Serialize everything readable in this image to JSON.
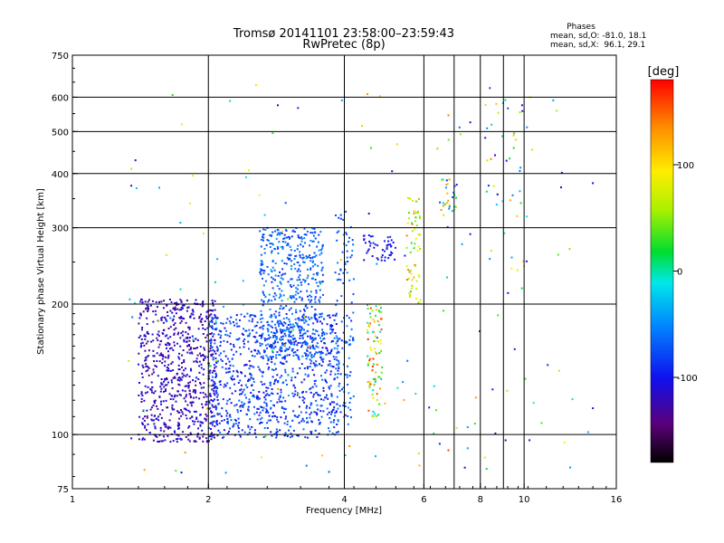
{
  "chart_data": {
    "type": "scatter",
    "title": "Tromsø 20141101 23:58:00–23:59:43",
    "subtitle": "RwPretec (8p)",
    "xlabel": "Frequency [MHz]",
    "ylabel": "Stationary phase Virtual Height [km]",
    "x_scale": "log",
    "y_scale": "log",
    "xlim": [
      1,
      16
    ],
    "ylim": [
      75,
      750
    ],
    "x_ticks": [
      "1",
      "2",
      "4",
      "6",
      "8",
      "10",
      "16"
    ],
    "x_tick_values": [
      1,
      2,
      4,
      6,
      8,
      10,
      16
    ],
    "y_ticks": [
      "75",
      "100",
      "200",
      "300",
      "400",
      "500",
      "600",
      "750"
    ],
    "y_tick_values": [
      75,
      100,
      200,
      300,
      400,
      500,
      600,
      750
    ],
    "grid": true,
    "phases_box": {
      "heading": "Phases",
      "line1": "mean, sd,O: -81.0, 18.1",
      "line2": "mean, sd,X:  96.1, 29.1"
    },
    "colorbar": {
      "unit_label": "[deg]",
      "range": [
        -180,
        180
      ],
      "tick_labels": [
        "100",
        "0",
        "-100"
      ],
      "tick_values": [
        100,
        0,
        -100
      ]
    },
    "clusters": [
      {
        "f": [
          1.4,
          2.1
        ],
        "h": [
          96,
          205
        ],
        "phase": [
          -140,
          -100
        ],
        "count": 720
      },
      {
        "f": [
          2.0,
          3.9
        ],
        "h": [
          98,
          190
        ],
        "phase": [
          -110,
          -55
        ],
        "count": 900
      },
      {
        "f": [
          2.6,
          3.6
        ],
        "h": [
          150,
          300
        ],
        "phase": [
          -90,
          -45
        ],
        "count": 480
      },
      {
        "f": [
          3.8,
          4.2
        ],
        "h": [
          105,
          330
        ],
        "phase": [
          -90,
          -40
        ],
        "count": 120
      },
      {
        "f": [
          4.5,
          4.85
        ],
        "h": [
          110,
          200
        ],
        "phase": [
          -30,
          170
        ],
        "count": 90
      },
      {
        "f": [
          4.4,
          5.2
        ],
        "h": [
          250,
          290
        ],
        "phase": [
          -115,
          -90
        ],
        "count": 50
      },
      {
        "f": [
          5.5,
          5.9
        ],
        "h": [
          200,
          360
        ],
        "phase": [
          20,
          150
        ],
        "count": 60
      },
      {
        "f": [
          6.5,
          7.1
        ],
        "h": [
          320,
          390
        ],
        "phase": [
          -100,
          140
        ],
        "count": 30
      },
      {
        "f": [
          8.2,
          10.2
        ],
        "h": [
          200,
          600
        ],
        "phase": [
          -110,
          150
        ],
        "count": 40
      },
      {
        "f": [
          1.3,
          14.0
        ],
        "h": [
          80,
          640
        ],
        "phase": [
          -130,
          140
        ],
        "count": 140
      }
    ],
    "points": [
      {
        "x": 1.35,
        "y": 410,
        "phase": 60
      },
      {
        "x": 1.35,
        "y": 375,
        "phase": -120
      },
      {
        "x": 1.34,
        "y": 205,
        "phase": -30
      },
      {
        "x": 1.35,
        "y": 98,
        "phase": -120
      },
      {
        "x": 2.55,
        "y": 640,
        "phase": 100
      },
      {
        "x": 2.85,
        "y": 575,
        "phase": -110
      },
      {
        "x": 3.95,
        "y": 590,
        "phase": -40
      },
      {
        "x": 4.5,
        "y": 610,
        "phase": 130
      },
      {
        "x": 5.1,
        "y": 405,
        "phase": -120
      },
      {
        "x": 6.8,
        "y": 545,
        "phase": 140
      },
      {
        "x": 7.6,
        "y": 525,
        "phase": -110
      },
      {
        "x": 8.4,
        "y": 630,
        "phase": -80
      },
      {
        "x": 9.9,
        "y": 575,
        "phase": -110
      },
      {
        "x": 10.3,
        "y": 600,
        "phase": 80
      },
      {
        "x": 11.6,
        "y": 590,
        "phase": -40
      },
      {
        "x": 14.2,
        "y": 380,
        "phase": -110
      },
      {
        "x": 14.2,
        "y": 115,
        "phase": -110
      },
      {
        "x": 6.8,
        "y": 92,
        "phase": 160
      },
      {
        "x": 7.5,
        "y": 93,
        "phase": -40
      },
      {
        "x": 9.1,
        "y": 97,
        "phase": -120
      },
      {
        "x": 7.5,
        "y": 104,
        "phase": -40
      },
      {
        "x": 3.7,
        "y": 82,
        "phase": -70
      },
      {
        "x": 7.6,
        "y": 290,
        "phase": -100
      }
    ]
  }
}
